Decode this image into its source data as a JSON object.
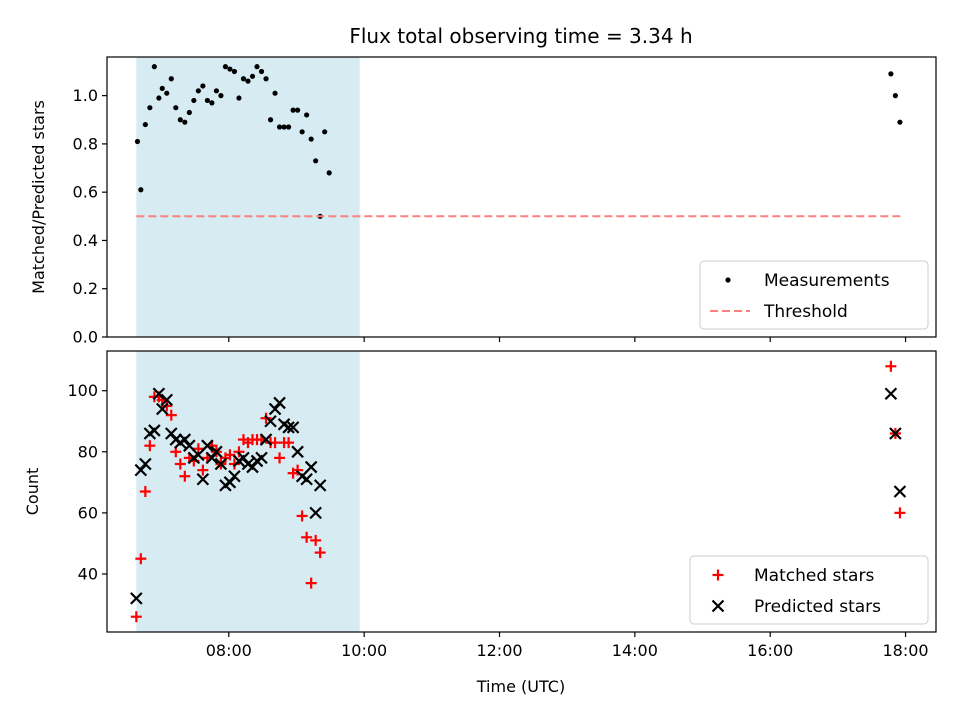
{
  "chart_data": [
    {
      "type": "scatter",
      "title": "Flux total observing time = 3.34 h",
      "xlabel": "",
      "ylabel": "Matched/Predicted stars",
      "xlim": [
        "06:12",
        "18:27"
      ],
      "ylim": [
        0,
        1.16
      ],
      "yticks": [
        0.0,
        0.2,
        0.4,
        0.6,
        0.8,
        1.0
      ],
      "ytick_labels": [
        "0.0",
        "0.2",
        "0.4",
        "0.6",
        "0.8",
        "1.0"
      ],
      "grid": false,
      "legend": "lower-right",
      "shaded_span": {
        "x0": "06:38",
        "x1": "09:56",
        "color": "#add8e6"
      },
      "series": [
        {
          "name": "Measurements",
          "marker": "dot",
          "color": "#000000",
          "points": [
            [
              "06:39",
              0.81
            ],
            [
              "06:42",
              0.61
            ],
            [
              "06:46",
              0.88
            ],
            [
              "06:50",
              0.95
            ],
            [
              "06:54",
              1.12
            ],
            [
              "06:58",
              0.99
            ],
            [
              "07:01",
              1.03
            ],
            [
              "07:05",
              1.01
            ],
            [
              "07:09",
              1.07
            ],
            [
              "07:13",
              0.95
            ],
            [
              "07:17",
              0.9
            ],
            [
              "07:21",
              0.89
            ],
            [
              "07:25",
              0.93
            ],
            [
              "07:29",
              0.98
            ],
            [
              "07:33",
              1.02
            ],
            [
              "07:37",
              1.04
            ],
            [
              "07:41",
              0.98
            ],
            [
              "07:45",
              0.97
            ],
            [
              "07:49",
              1.02
            ],
            [
              "07:53",
              1.0
            ],
            [
              "07:57",
              1.12
            ],
            [
              "08:01",
              1.11
            ],
            [
              "08:05",
              1.1
            ],
            [
              "08:09",
              0.99
            ],
            [
              "08:13",
              1.07
            ],
            [
              "08:17",
              1.06
            ],
            [
              "08:21",
              1.08
            ],
            [
              "08:25",
              1.12
            ],
            [
              "08:29",
              1.1
            ],
            [
              "08:33",
              1.07
            ],
            [
              "08:37",
              0.9
            ],
            [
              "08:41",
              1.01
            ],
            [
              "08:45",
              0.87
            ],
            [
              "08:49",
              0.87
            ],
            [
              "08:53",
              0.87
            ],
            [
              "08:57",
              0.94
            ],
            [
              "09:01",
              0.94
            ],
            [
              "09:05",
              0.85
            ],
            [
              "09:09",
              0.92
            ],
            [
              "09:13",
              0.82
            ],
            [
              "09:17",
              0.73
            ],
            [
              "09:21",
              0.5
            ],
            [
              "09:25",
              0.85
            ],
            [
              "09:29",
              0.68
            ],
            [
              "17:47",
              1.09
            ],
            [
              "17:51",
              1.0
            ],
            [
              "17:55",
              0.89
            ]
          ]
        },
        {
          "name": "Threshold",
          "marker": "dashed-line",
          "color": "#ff7f7f",
          "points": [
            [
              "06:38",
              0.5
            ],
            [
              "17:57",
              0.5
            ]
          ]
        }
      ]
    },
    {
      "type": "scatter",
      "title": "",
      "xlabel": "Time (UTC)",
      "ylabel": "Count",
      "xlim": [
        "06:12",
        "18:27"
      ],
      "ylim": [
        21,
        113
      ],
      "yticks": [
        40,
        60,
        80,
        100
      ],
      "ytick_labels": [
        "40",
        "60",
        "80",
        "100"
      ],
      "xticks": [
        "08:00",
        "10:00",
        "12:00",
        "14:00",
        "16:00",
        "18:00"
      ],
      "grid": false,
      "legend": "lower-right",
      "shaded_span": {
        "x0": "06:38",
        "x1": "09:56",
        "color": "#add8e6"
      },
      "series": [
        {
          "name": "Matched stars",
          "marker": "plus",
          "color": "#ff0000",
          "points": [
            [
              "06:38",
              26
            ],
            [
              "06:42",
              45
            ],
            [
              "06:46",
              67
            ],
            [
              "06:50",
              82
            ],
            [
              "06:54",
              98
            ],
            [
              "06:58",
              98
            ],
            [
              "07:01",
              97
            ],
            [
              "07:05",
              95
            ],
            [
              "07:09",
              92
            ],
            [
              "07:13",
              80
            ],
            [
              "07:17",
              76
            ],
            [
              "07:21",
              72
            ],
            [
              "07:25",
              78
            ],
            [
              "07:29",
              77
            ],
            [
              "07:33",
              81
            ],
            [
              "07:37",
              74
            ],
            [
              "07:41",
              78
            ],
            [
              "07:45",
              82
            ],
            [
              "07:49",
              80
            ],
            [
              "07:53",
              76
            ],
            [
              "07:57",
              78
            ],
            [
              "08:01",
              79
            ],
            [
              "08:05",
              76
            ],
            [
              "08:09",
              80
            ],
            [
              "08:13",
              84
            ],
            [
              "08:17",
              83
            ],
            [
              "08:21",
              84
            ],
            [
              "08:25",
              84
            ],
            [
              "08:29",
              84
            ],
            [
              "08:33",
              91
            ],
            [
              "08:37",
              83
            ],
            [
              "08:41",
              83
            ],
            [
              "08:45",
              78
            ],
            [
              "08:49",
              83
            ],
            [
              "08:53",
              83
            ],
            [
              "08:57",
              73
            ],
            [
              "09:01",
              74
            ],
            [
              "09:05",
              59
            ],
            [
              "09:09",
              52
            ],
            [
              "09:13",
              37
            ],
            [
              "09:17",
              51
            ],
            [
              "09:21",
              47
            ],
            [
              "17:47",
              108
            ],
            [
              "17:51",
              86
            ],
            [
              "17:55",
              60
            ]
          ]
        },
        {
          "name": "Predicted stars",
          "marker": "x",
          "color": "#000000",
          "points": [
            [
              "06:38",
              32
            ],
            [
              "06:42",
              74
            ],
            [
              "06:46",
              76
            ],
            [
              "06:50",
              86
            ],
            [
              "06:54",
              87
            ],
            [
              "06:58",
              99
            ],
            [
              "07:01",
              94
            ],
            [
              "07:05",
              97
            ],
            [
              "07:09",
              86
            ],
            [
              "07:13",
              84
            ],
            [
              "07:17",
              83
            ],
            [
              "07:21",
              84
            ],
            [
              "07:25",
              82
            ],
            [
              "07:29",
              78
            ],
            [
              "07:33",
              79
            ],
            [
              "07:37",
              71
            ],
            [
              "07:41",
              82
            ],
            [
              "07:45",
              78
            ],
            [
              "07:49",
              80
            ],
            [
              "07:53",
              76
            ],
            [
              "07:57",
              69
            ],
            [
              "08:01",
              70
            ],
            [
              "08:05",
              72
            ],
            [
              "08:09",
              77
            ],
            [
              "08:13",
              78
            ],
            [
              "08:17",
              76
            ],
            [
              "08:21",
              75
            ],
            [
              "08:25",
              77
            ],
            [
              "08:29",
              78
            ],
            [
              "08:33",
              84
            ],
            [
              "08:37",
              90
            ],
            [
              "08:41",
              94
            ],
            [
              "08:45",
              96
            ],
            [
              "08:49",
              89
            ],
            [
              "08:53",
              88
            ],
            [
              "08:57",
              88
            ],
            [
              "09:01",
              80
            ],
            [
              "09:05",
              72
            ],
            [
              "09:09",
              71
            ],
            [
              "09:13",
              75
            ],
            [
              "09:17",
              60
            ],
            [
              "09:21",
              69
            ],
            [
              "17:47",
              99
            ],
            [
              "17:51",
              86
            ],
            [
              "17:55",
              67
            ]
          ]
        }
      ]
    }
  ]
}
